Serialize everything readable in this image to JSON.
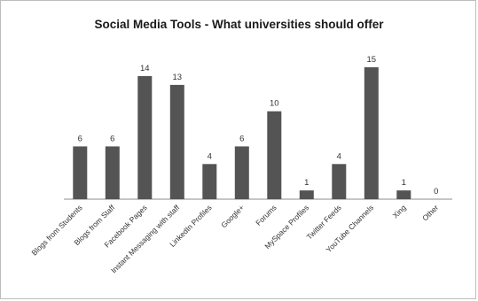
{
  "chart_data": {
    "type": "bar",
    "title": "Social Media Tools - What universities should offer",
    "xlabel": "",
    "ylabel": "",
    "categories": [
      "Blogs from Students",
      "Blogs from Staff",
      "Facebook Pages",
      "Instant Messaging with staff",
      "LinkedIn Profiles",
      "Google+",
      "Forums",
      "MySpace Profiles",
      "Twitter Feeds",
      "YouTube Channels",
      "Xing",
      "Other"
    ],
    "values": [
      6,
      6,
      14,
      13,
      4,
      6,
      10,
      1,
      4,
      15,
      1,
      0
    ],
    "ylim": [
      0,
      15
    ],
    "grid": false,
    "legend": "none",
    "colors": {
      "bar": "#545454",
      "axis": "#8c8c8c"
    }
  }
}
